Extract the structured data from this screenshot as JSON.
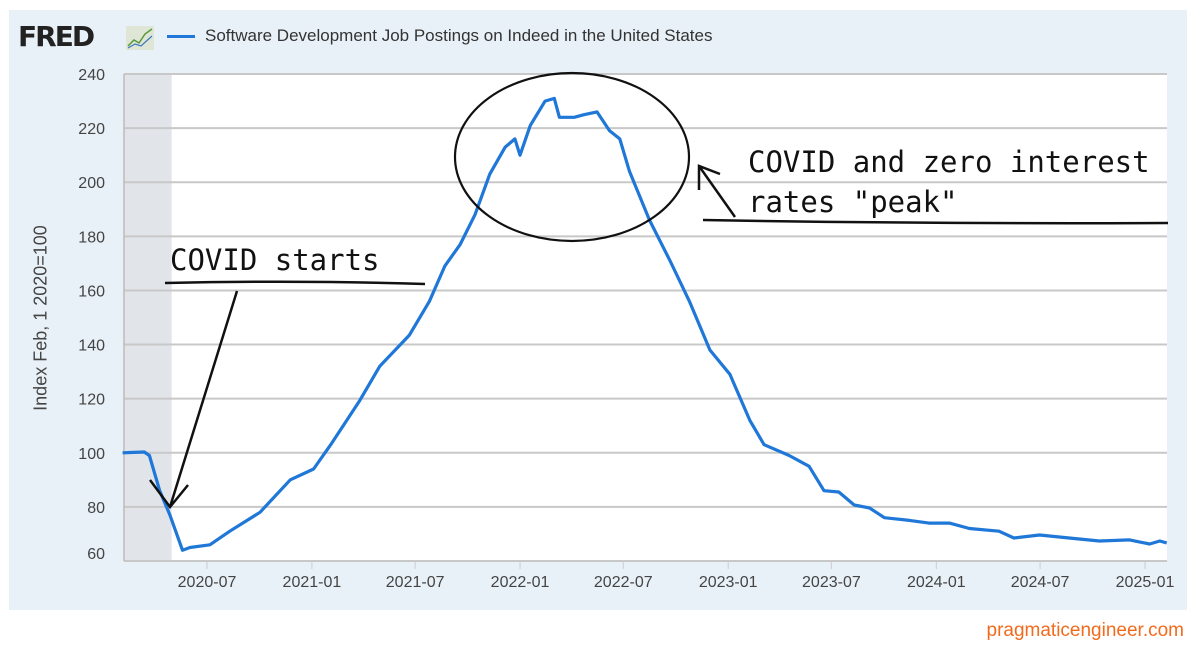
{
  "header": {
    "logo": "FRED",
    "logo_icon": "fred-chart-icon"
  },
  "credit": "pragmaticengineer.com",
  "colors": {
    "series": "#1f77d8",
    "recession_shade": "#e1e5ea",
    "panel": "#e9f1f8",
    "credit": "#f26b1d"
  },
  "annotations": {
    "covid_starts": "COVID starts",
    "peak_line1": "COVID and zero interest",
    "peak_line2": "rates \"peak\""
  },
  "chart_data": {
    "type": "line",
    "title": "",
    "ylabel": "Index Feb, 1 2020=100",
    "xlabel": "",
    "ylim": [
      60,
      240
    ],
    "yticks": [
      60,
      80,
      100,
      120,
      140,
      160,
      180,
      200,
      220,
      240
    ],
    "xticks": [
      "2020-07",
      "2021-01",
      "2021-07",
      "2022-01",
      "2022-07",
      "2023-01",
      "2023-07",
      "2024-01",
      "2024-07",
      "2025-01"
    ],
    "xlim": [
      "2020-02-01",
      "2025-02-10"
    ],
    "grid": true,
    "legend": "top-left",
    "recession_shading": [
      "2020-02-01",
      "2020-04-30"
    ],
    "series": [
      {
        "name": "Software Development Job Postings on Indeed in the United States",
        "x": [
          "2020-02-04",
          "2020-03-13",
          "2020-03-22",
          "2020-04-09",
          "2020-04-27",
          "2020-05-19",
          "2020-06-01",
          "2020-07-06",
          "2020-08-10",
          "2020-10-02",
          "2020-11-24",
          "2021-01-04",
          "2021-02-03",
          "2021-03-25",
          "2021-04-30",
          "2021-06-21",
          "2021-07-26",
          "2021-08-22",
          "2021-09-18",
          "2021-10-14",
          "2021-11-09",
          "2021-12-06",
          "2021-12-23",
          "2022-01-01",
          "2022-01-19",
          "2022-02-14",
          "2022-03-02",
          "2022-03-11",
          "2022-04-06",
          "2022-04-24",
          "2022-05-16",
          "2022-06-07",
          "2022-06-25",
          "2022-07-12",
          "2022-08-16",
          "2022-09-21",
          "2022-10-25",
          "2022-11-30",
          "2023-01-04",
          "2023-02-08",
          "2023-03-05",
          "2023-04-18",
          "2023-05-23",
          "2023-06-18",
          "2023-07-14",
          "2023-08-10",
          "2023-09-06",
          "2023-10-02",
          "2023-11-15",
          "2023-12-19",
          "2024-01-24",
          "2024-02-28",
          "2024-04-20",
          "2024-05-16",
          "2024-06-30",
          "2024-08-21",
          "2024-10-13",
          "2024-12-05",
          "2025-01-09",
          "2025-01-27",
          "2025-02-08"
        ],
        "values": [
          100,
          100.3,
          99,
          86,
          77,
          64,
          65,
          66,
          71,
          78,
          90,
          94,
          103,
          119,
          132,
          143.5,
          156,
          169,
          177,
          188,
          203,
          213,
          216,
          210,
          221,
          230,
          231,
          224,
          224,
          225,
          226,
          219,
          216,
          204,
          186,
          171,
          156,
          138,
          129,
          112,
          103,
          99,
          95,
          86,
          85.5,
          80.7,
          79.6,
          76,
          75,
          74,
          74,
          72,
          71,
          68.5,
          69.6,
          68.5,
          67.4,
          67.8,
          66.3,
          67.4,
          66.7
        ]
      }
    ]
  }
}
